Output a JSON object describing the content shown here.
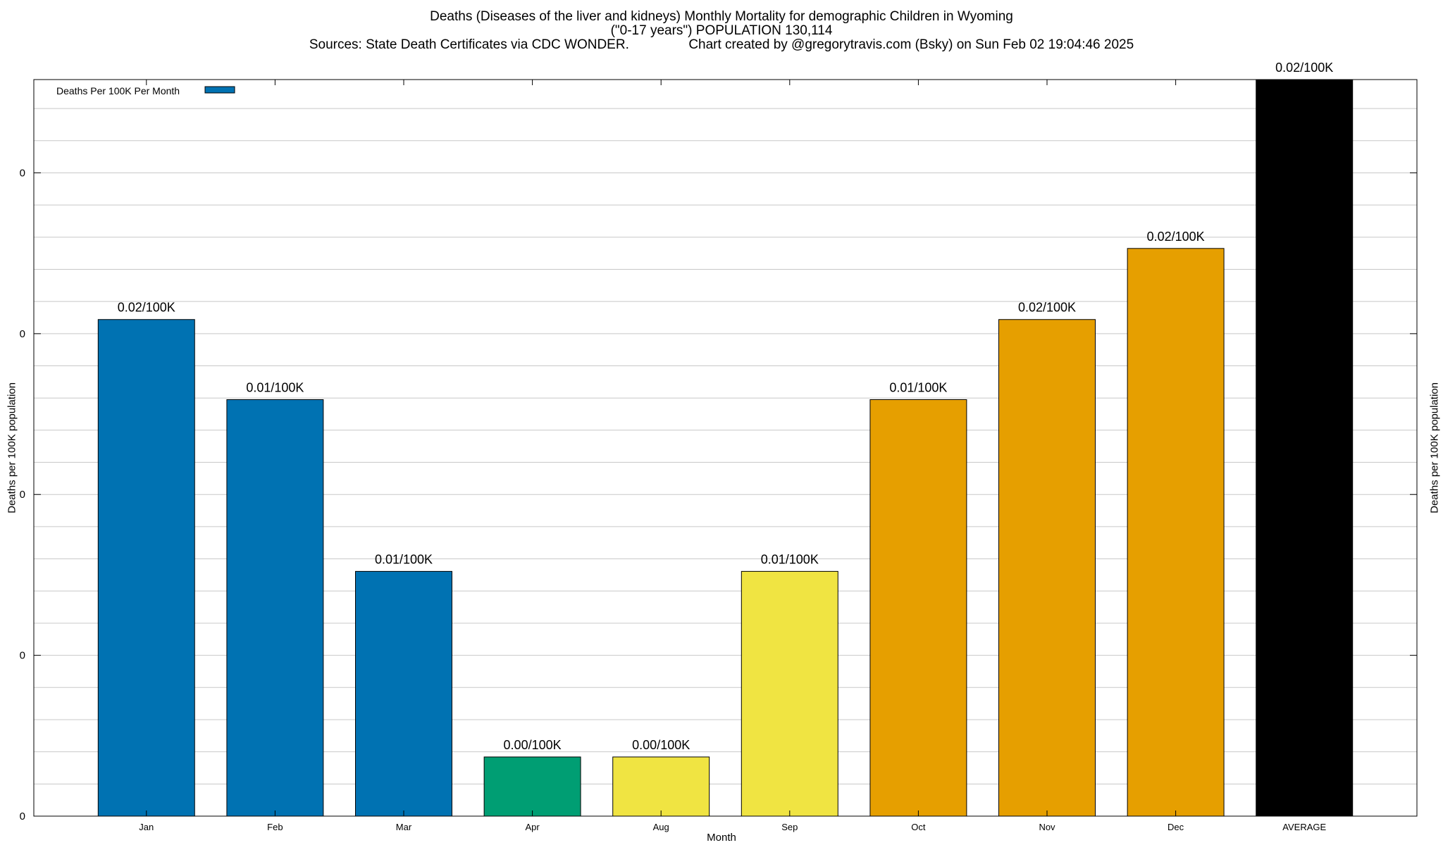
{
  "chart_data": {
    "type": "bar",
    "title": "Deaths (Diseases of the liver and kidneys) Monthly Mortality for demographic Children in Wyoming",
    "subtitle": "(\"0-17 years\") POPULATION 130,114",
    "source_line": "Sources: State Death Certificates via CDC WONDER.                Chart created by @gregorytravis.com (Bsky) on Sun Feb 02 19:04:46 2025",
    "xlabel": "Month",
    "ylabel": "Deaths per 100K population",
    "ylabel_right": "Deaths per 100K population",
    "legend": {
      "label": "Deaths Per 100K Per Month",
      "color": "#0072b2",
      "position": "top-left"
    },
    "categories": [
      "Jan",
      "Feb",
      "Mar",
      "Apr",
      "Aug",
      "Sep",
      "Oct",
      "Nov",
      "Dec",
      "AVERAGE"
    ],
    "values": [
      0.01544,
      0.01295,
      0.00761,
      0.00184,
      0.00184,
      0.00761,
      0.01295,
      0.01544,
      0.01765,
      0.0229
    ],
    "data_labels": [
      "0.02/100K",
      "0.01/100K",
      "0.01/100K",
      "0.00/100K",
      "0.00/100K",
      "0.01/100K",
      "0.01/100K",
      "0.02/100K",
      "0.02/100K",
      "0.02/100K"
    ],
    "colors": [
      "#0072b2",
      "#0072b2",
      "#0072b2",
      "#009e73",
      "#f0e442",
      "#f0e442",
      "#e69f00",
      "#e69f00",
      "#e69f00",
      "#000000"
    ],
    "ylim": [
      0,
      0.0229
    ],
    "yticks": [
      0,
      0.005,
      0.01,
      0.015,
      0.02
    ],
    "ytick_labels": [
      "0",
      "0",
      "0",
      "0",
      "0"
    ],
    "grid": true
  }
}
